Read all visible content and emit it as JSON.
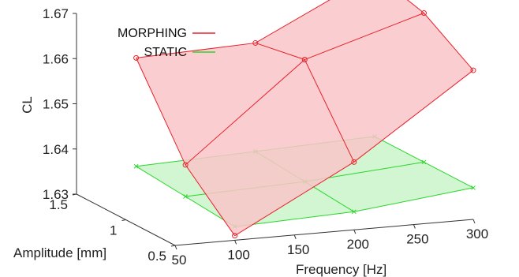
{
  "chart_data": {
    "type": "surface-3d",
    "title": "",
    "xlabel": "Frequency [Hz]",
    "ylabel": "Amplitude [mm]",
    "zlabel": "CL",
    "x_ticks": [
      "50",
      "100",
      "150",
      "200",
      "250",
      "300"
    ],
    "y_ticks": [
      "0.5",
      "1",
      "1.5"
    ],
    "z_ticks": [
      "1.63",
      "1.64",
      "1.65",
      "1.66",
      "1.67"
    ],
    "xlim": [
      50,
      300
    ],
    "ylim": [
      0.5,
      1.5
    ],
    "zlim": [
      1.63,
      1.67
    ],
    "grid": false,
    "legend_position": "top-left",
    "x": [
      100,
      200,
      300
    ],
    "y": [
      0.5,
      1.0,
      1.5
    ],
    "series": [
      {
        "name": "MORPHING",
        "color": "#e8202a",
        "fill": "#f9c6c8",
        "marker": "circle",
        "z": [
          [
            1.631,
            1.645,
            1.663
          ],
          [
            1.641,
            1.662,
            1.67
          ],
          [
            1.659,
            1.66,
            1.673
          ]
        ]
      },
      {
        "name": "STATIC",
        "color": "#2bd62b",
        "fill": "#c9f5c9",
        "marker": "x",
        "z": [
          [
            1.633,
            1.634,
            1.637
          ],
          [
            1.634,
            1.635,
            1.637
          ],
          [
            1.635,
            1.636,
            1.637
          ]
        ]
      }
    ]
  }
}
